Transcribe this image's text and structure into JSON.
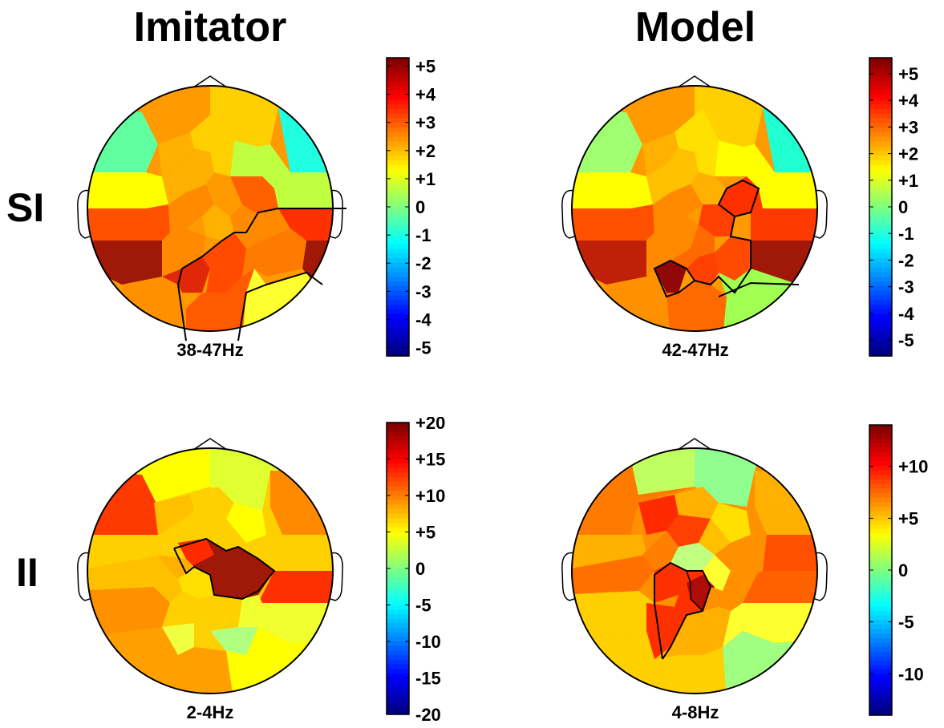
{
  "columns": {
    "imitator": "Imitator",
    "model": "Model"
  },
  "rows": {
    "si": "SI",
    "ii": "II"
  },
  "panels": {
    "si_imitator": {
      "freq": "38-47Hz"
    },
    "si_model": {
      "freq": "42-47Hz"
    },
    "ii_imitator": {
      "freq": "2-4Hz"
    },
    "ii_model": {
      "freq": "4-8Hz"
    }
  },
  "colorbars": {
    "si_imitator": {
      "min": -5.3,
      "max": 5.3,
      "ticks": [
        {
          "v": 5,
          "label": "+5"
        },
        {
          "v": 4,
          "label": "+4"
        },
        {
          "v": 3,
          "label": "+3"
        },
        {
          "v": 2,
          "label": "+2"
        },
        {
          "v": 1,
          "label": "+1"
        },
        {
          "v": 0,
          "label": "0"
        },
        {
          "v": -1,
          "label": "-1"
        },
        {
          "v": -2,
          "label": "-2"
        },
        {
          "v": -3,
          "label": "-3"
        },
        {
          "v": -4,
          "label": "-4"
        },
        {
          "v": -5,
          "label": "-5"
        }
      ]
    },
    "si_model": {
      "min": -5.6,
      "max": 5.6,
      "ticks": [
        {
          "v": 5,
          "label": "+5"
        },
        {
          "v": 4,
          "label": "+4"
        },
        {
          "v": 3,
          "label": "+3"
        },
        {
          "v": 2,
          "label": "+2"
        },
        {
          "v": 1,
          "label": "+1"
        },
        {
          "v": 0,
          "label": "0"
        },
        {
          "v": -1,
          "label": "-1"
        },
        {
          "v": -2,
          "label": "-2"
        },
        {
          "v": -3,
          "label": "-3"
        },
        {
          "v": -4,
          "label": "-4"
        },
        {
          "v": -5,
          "label": "-5"
        }
      ]
    },
    "ii_imitator": {
      "min": -20,
      "max": 20,
      "ticks": [
        {
          "v": 20,
          "label": "+20"
        },
        {
          "v": 15,
          "label": "+15"
        },
        {
          "v": 10,
          "label": "+10"
        },
        {
          "v": 5,
          "label": "+5"
        },
        {
          "v": 0,
          "label": "0"
        },
        {
          "v": -5,
          "label": "-5"
        },
        {
          "v": -10,
          "label": "-10"
        },
        {
          "v": -15,
          "label": "-15"
        },
        {
          "v": -20,
          "label": "-20"
        }
      ]
    },
    "ii_model": {
      "min": -14,
      "max": 14,
      "ticks": [
        {
          "v": 10,
          "label": "+10"
        },
        {
          "v": 5,
          "label": "+5"
        },
        {
          "v": 0,
          "label": "0"
        },
        {
          "v": -5,
          "label": "-5"
        },
        {
          "v": -10,
          "label": "-10"
        }
      ]
    }
  },
  "colors": {
    "jet_dark_red": "#800000",
    "red": "#ff2000",
    "orange": "#ff9000",
    "yellow": "#ffff00",
    "green": "#80ff80",
    "cyan": "#00ffff",
    "blue": "#0000ff",
    "dark_blue": "#00008f",
    "outline": "#000000"
  }
}
